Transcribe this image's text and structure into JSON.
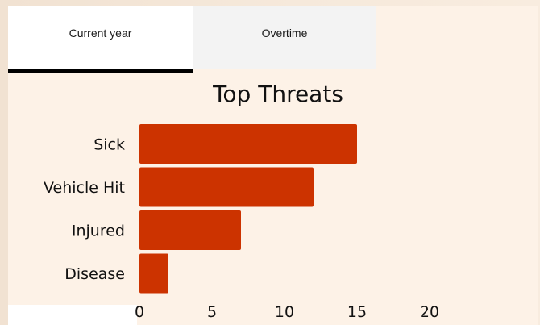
{
  "tabs": [
    {
      "label": "Current year",
      "active": true
    },
    {
      "label": "Overtime",
      "active": false
    }
  ],
  "colors": {
    "bar": "#cc3300",
    "active_tab_indicator": "#000000"
  },
  "chart_data": {
    "type": "bar",
    "orientation": "horizontal",
    "title": "Top Threats",
    "categories": [
      "Sick",
      "Vehicle Hit",
      "Injured",
      "Disease"
    ],
    "values": [
      15,
      12,
      7,
      2
    ],
    "xlim": [
      0,
      20
    ],
    "xticks": [
      "0",
      "5",
      "10",
      "15",
      "20"
    ],
    "grid": false
  }
}
